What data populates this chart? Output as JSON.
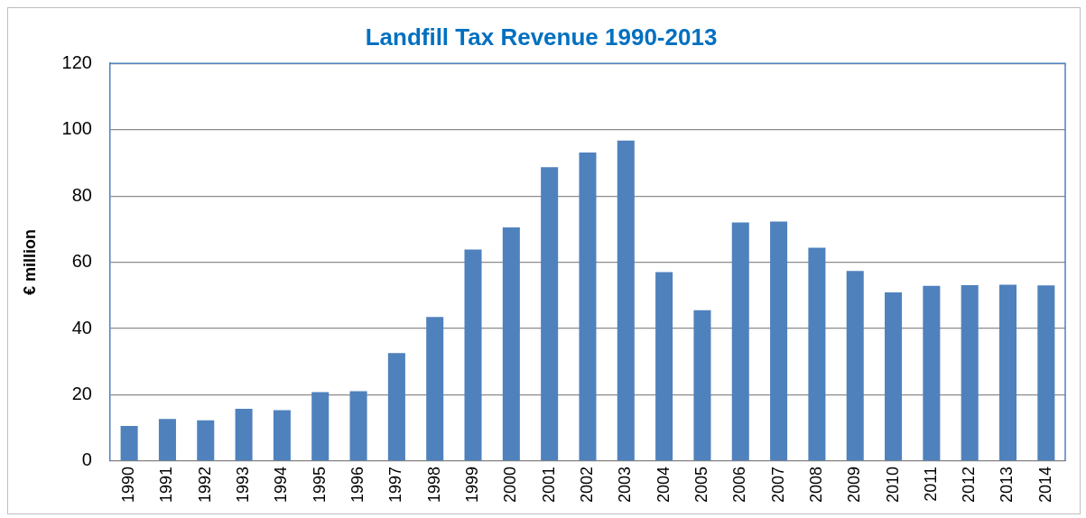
{
  "chart_data": {
    "type": "bar",
    "title": "Landfill Tax Revenue 1990-2013",
    "ylabel": "€ million",
    "categories": [
      "1990",
      "1991",
      "1992",
      "1993",
      "1994",
      "1995",
      "1996",
      "1997",
      "1998",
      "1999",
      "2000",
      "2001",
      "2002",
      "2003",
      "2004",
      "2005",
      "2006",
      "2007",
      "2008",
      "2009",
      "2010",
      "2011",
      "2012",
      "2013",
      "2014"
    ],
    "values": [
      10.6,
      12.7,
      12.3,
      15.8,
      15.4,
      20.8,
      21.1,
      32.6,
      43.5,
      63.8,
      70.5,
      88.7,
      93.1,
      96.7,
      57.0,
      45.5,
      72.0,
      72.3,
      64.4,
      57.4,
      50.9,
      52.9,
      53.1,
      53.2,
      53.0
    ],
    "color": "#4f81bd",
    "ylim": [
      0,
      120
    ],
    "yticks": [
      0,
      20,
      40,
      60,
      80,
      100,
      120
    ],
    "grid": "y",
    "legend": false
  }
}
